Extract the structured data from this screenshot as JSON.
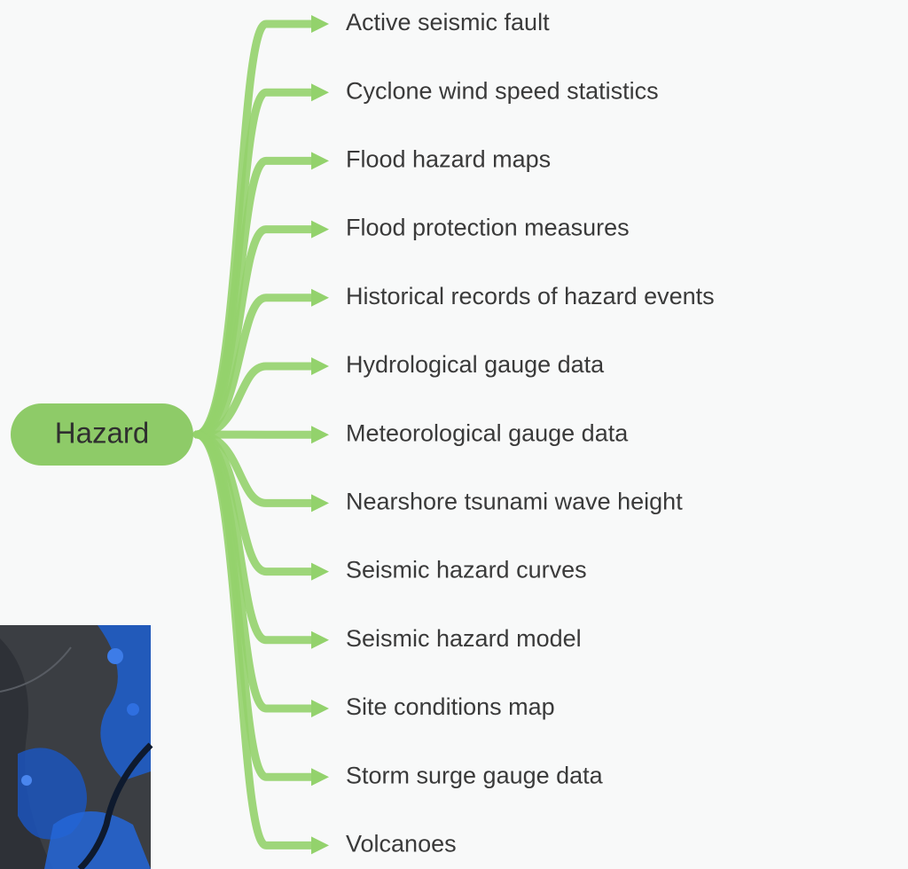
{
  "root": {
    "label": "Hazard"
  },
  "nodes": [
    {
      "label": "Active seismic fault"
    },
    {
      "label": "Cyclone wind speed statistics"
    },
    {
      "label": "Flood hazard maps"
    },
    {
      "label": "Flood protection measures"
    },
    {
      "label": "Historical records of hazard events"
    },
    {
      "label": "Hydrological gauge data"
    },
    {
      "label": "Meteorological gauge data"
    },
    {
      "label": "Nearshore tsunami wave height"
    },
    {
      "label": "Seismic hazard curves"
    },
    {
      "label": "Seismic hazard model"
    },
    {
      "label": "Site conditions map"
    },
    {
      "label": "Storm surge gauge data"
    },
    {
      "label": "Volcanoes"
    }
  ]
}
